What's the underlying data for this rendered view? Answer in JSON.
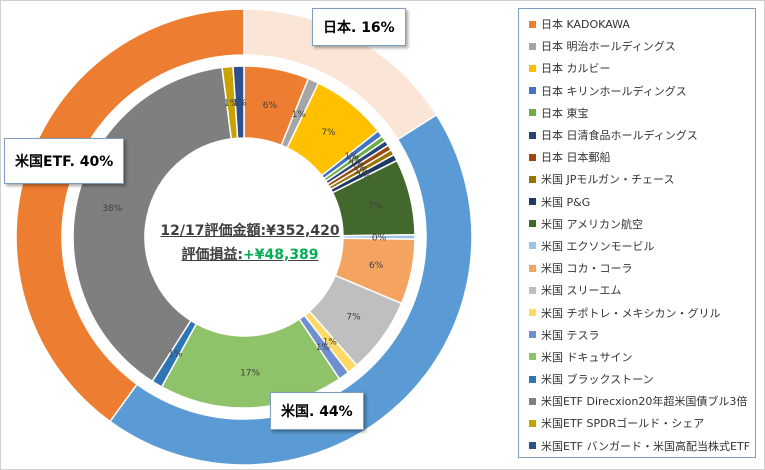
{
  "center": {
    "line1": "12/17評価金額:¥352,420",
    "line2_label": "評価損益:",
    "line2_value": "+¥48,389",
    "value_color": "#00b050"
  },
  "callouts": {
    "japan": "日本. 16%",
    "usa": "米国. 44%",
    "etf": "米国ETF. 40%"
  },
  "legend": [
    {
      "label": "日本 KADOKAWA",
      "color": "#ed7d31"
    },
    {
      "label": "日本 明治ホールディングス",
      "color": "#a5a5a5"
    },
    {
      "label": "日本 カルビー",
      "color": "#ffc000"
    },
    {
      "label": "日本 キリンホールディングス",
      "color": "#4472c4"
    },
    {
      "label": "日本 東宝",
      "color": "#70ad47"
    },
    {
      "label": "日本 日清食品ホールディングス",
      "color": "#264478"
    },
    {
      "label": "日本 日本郵船",
      "color": "#9e480e"
    },
    {
      "label": "米国 JPモルガン・チェース",
      "color": "#997300"
    },
    {
      "label": "米国 P&G",
      "color": "#203864"
    },
    {
      "label": "米国 アメリカン航空",
      "color": "#43682b"
    },
    {
      "label": "米国 エクソンモービル",
      "color": "#9dc3e6"
    },
    {
      "label": "米国 コカ・コーラ",
      "color": "#f4a460"
    },
    {
      "label": "米国 スリーエム",
      "color": "#bfbfbf"
    },
    {
      "label": "米国 チポトレ・メキシカン・グリル",
      "color": "#ffd966"
    },
    {
      "label": "米国 テスラ",
      "color": "#6f8fd0"
    },
    {
      "label": "米国 ドキュサイン",
      "color": "#8fc36a"
    },
    {
      "label": "米国 ブラックストーン",
      "color": "#2e75b6"
    },
    {
      "label": "米国ETF Direcxion20年超米国債ブル3倍",
      "color": "#7f7f7f"
    },
    {
      "label": "米国ETF SPDRゴールド・シェア",
      "color": "#c9a100"
    },
    {
      "label": "米国ETF バンガード・米国高配当株式ETF",
      "color": "#2f4f8f"
    }
  ],
  "chart_data": {
    "type": "pie",
    "subtype": "double-donut",
    "outer_ring": [
      {
        "name": "日本",
        "value": 16,
        "color": "#fbe5d6"
      },
      {
        "name": "米国",
        "value": 44,
        "color": "#5b9bd5"
      },
      {
        "name": "米国ETF",
        "value": 40,
        "color": "#ed7d31"
      }
    ],
    "inner_ring": [
      {
        "name": "日本 KADOKAWA",
        "value": 6,
        "label": "6%",
        "color": "#ed7d31"
      },
      {
        "name": "日本 明治ホールディングス",
        "value": 1,
        "label": "1%",
        "color": "#a5a5a5"
      },
      {
        "name": "日本 カルビー",
        "value": 7,
        "label": "7%",
        "color": "#ffc000"
      },
      {
        "name": "日本 キリンホールディングス",
        "value": 0.6,
        "label": "1%",
        "color": "#4472c4"
      },
      {
        "name": "日本 東宝",
        "value": 0.5,
        "label": "1%",
        "color": "#70ad47"
      },
      {
        "name": "日本 日清食品ホールディングス",
        "value": 0.5,
        "label": "1%",
        "color": "#264478"
      },
      {
        "name": "日本 日本郵船",
        "value": 0.5,
        "label": "1%",
        "color": "#9e480e"
      },
      {
        "name": "米国 JPモルガン・チェース",
        "value": 0.5,
        "label": "1%",
        "color": "#997300"
      },
      {
        "name": "米国 P&G",
        "value": 0.6,
        "label": "1%",
        "color": "#203864"
      },
      {
        "name": "米国 アメリカン航空",
        "value": 7,
        "label": "7%",
        "color": "#43682b"
      },
      {
        "name": "米国 エクソンモービル",
        "value": 0.4,
        "label": "0%",
        "color": "#9dc3e6"
      },
      {
        "name": "米国 コカ・コーラ",
        "value": 6,
        "label": "6%",
        "color": "#f4a460"
      },
      {
        "name": "米国 スリーエム",
        "value": 7,
        "label": "7%",
        "color": "#bfbfbf"
      },
      {
        "name": "米国 チポトレ・メキシカン・グリル",
        "value": 1,
        "label": "1%",
        "color": "#ffd966"
      },
      {
        "name": "米国 テスラ",
        "value": 1,
        "label": "1%",
        "color": "#6f8fd0"
      },
      {
        "name": "米国 ドキュサイン",
        "value": 17,
        "label": "17%",
        "color": "#8fc36a"
      },
      {
        "name": "米国 ブラックストーン",
        "value": 1,
        "label": "1%",
        "color": "#2e75b6"
      },
      {
        "name": "米国ETF Direcxion20年超米国債ブル3倍",
        "value": 38,
        "label": "38%",
        "color": "#7f7f7f"
      },
      {
        "name": "米国ETF SPDRゴールド・シェア",
        "value": 1,
        "label": "1%",
        "color": "#c9a100"
      },
      {
        "name": "米国ETF バンガード・米国高配当株式ETF",
        "value": 1,
        "label": "1%",
        "color": "#2f4f8f"
      }
    ]
  }
}
